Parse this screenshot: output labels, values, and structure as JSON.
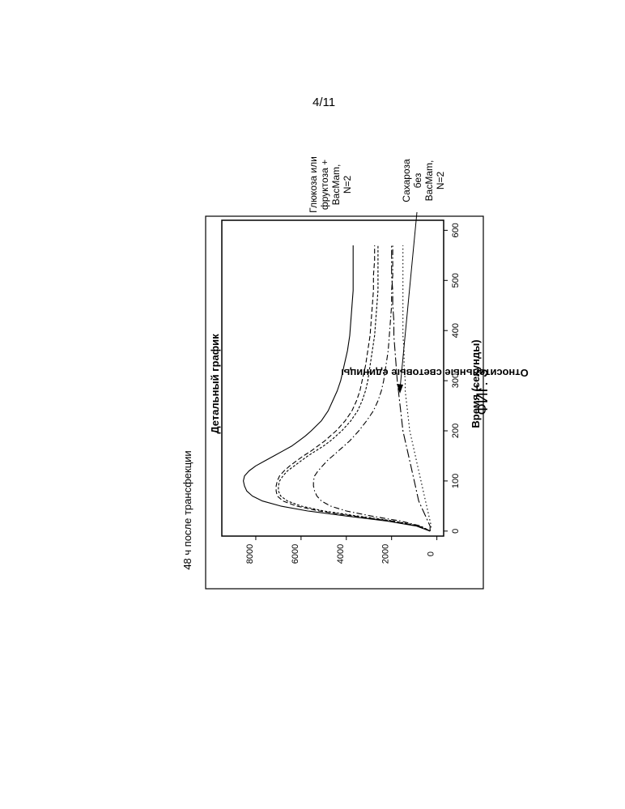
{
  "page": {
    "page_number": "4/11",
    "figure_caption": "ФИГ. 3"
  },
  "chart_data": {
    "type": "line",
    "subtitle": "48 ч после трансфекции",
    "title": "Детальный график",
    "xlabel": "Время (секунды)",
    "ylabel": "Относительные световые единицы",
    "xlim": [
      -10,
      620
    ],
    "ylim": [
      -300,
      9500
    ],
    "xticks": [
      0,
      100,
      200,
      300,
      400,
      500,
      600
    ],
    "yticks": [
      0,
      2000,
      4000,
      6000,
      8000
    ],
    "grid": false,
    "annotations": [
      {
        "text": [
          "Глюкоза или",
          "фруктоза +",
          "BacMam,",
          "N=2"
        ]
      },
      {
        "text": [
          "Сахароза",
          "без",
          "BacMam,",
          "N=2"
        ]
      }
    ],
    "x": [
      0,
      10,
      20,
      30,
      40,
      50,
      60,
      70,
      80,
      90,
      100,
      110,
      120,
      130,
      140,
      150,
      160,
      170,
      180,
      190,
      200,
      220,
      240,
      260,
      280,
      300,
      330,
      360,
      390,
      420,
      450,
      480,
      510,
      540,
      570
    ],
    "series": [
      {
        "style": "solid",
        "values": [
          300,
          900,
          2200,
          4000,
          5700,
          6900,
          7700,
          8150,
          8400,
          8500,
          8550,
          8500,
          8300,
          8000,
          7600,
          7200,
          6800,
          6400,
          6100,
          5800,
          5550,
          5100,
          4800,
          4600,
          4400,
          4250,
          4100,
          3950,
          3850,
          3800,
          3750,
          3700,
          3700,
          3700,
          3700
        ]
      },
      {
        "style": "dashed",
        "values": [
          300,
          800,
          2000,
          3700,
          5200,
          6200,
          6800,
          7050,
          7100,
          7100,
          7050,
          6950,
          6750,
          6500,
          6200,
          5900,
          5550,
          5250,
          4950,
          4700,
          4450,
          4050,
          3750,
          3550,
          3400,
          3300,
          3150,
          3050,
          2950,
          2900,
          2850,
          2800,
          2800,
          2750,
          2750
        ]
      },
      {
        "style": "short-dash",
        "values": [
          300,
          750,
          1900,
          3500,
          5000,
          6000,
          6600,
          6900,
          7000,
          7000,
          6950,
          6800,
          6600,
          6300,
          6000,
          5700,
          5350,
          5000,
          4700,
          4450,
          4200,
          3800,
          3500,
          3300,
          3150,
          3050,
          2950,
          2850,
          2750,
          2700,
          2650,
          2600,
          2600,
          2600,
          2600
        ]
      },
      {
        "style": "dash-dot",
        "values": [
          300,
          700,
          1600,
          2900,
          4000,
          4700,
          5100,
          5300,
          5400,
          5450,
          5450,
          5400,
          5250,
          5050,
          4850,
          4600,
          4350,
          4100,
          3850,
          3650,
          3450,
          3100,
          2800,
          2600,
          2450,
          2350,
          2250,
          2150,
          2100,
          2050,
          2000,
          2000,
          1950,
          1950,
          1950
        ]
      },
      {
        "style": "long-dash-dot",
        "values": [
          300,
          300,
          400,
          500,
          600,
          700,
          800,
          850,
          900,
          950,
          1000,
          1050,
          1100,
          1150,
          1200,
          1250,
          1300,
          1350,
          1400,
          1450,
          1500,
          1550,
          1600,
          1650,
          1700,
          1750,
          1800,
          1850,
          1900,
          1900,
          1950,
          1950,
          2000,
          2000,
          2000
        ]
      },
      {
        "style": "dotted",
        "values": [
          300,
          250,
          300,
          350,
          400,
          450,
          500,
          550,
          600,
          650,
          700,
          750,
          800,
          850,
          900,
          950,
          1000,
          1050,
          1100,
          1150,
          1200,
          1250,
          1300,
          1350,
          1400,
          1400,
          1450,
          1450,
          1500,
          1500,
          1500,
          1500,
          1500,
          1500,
          1500
        ]
      }
    ]
  }
}
